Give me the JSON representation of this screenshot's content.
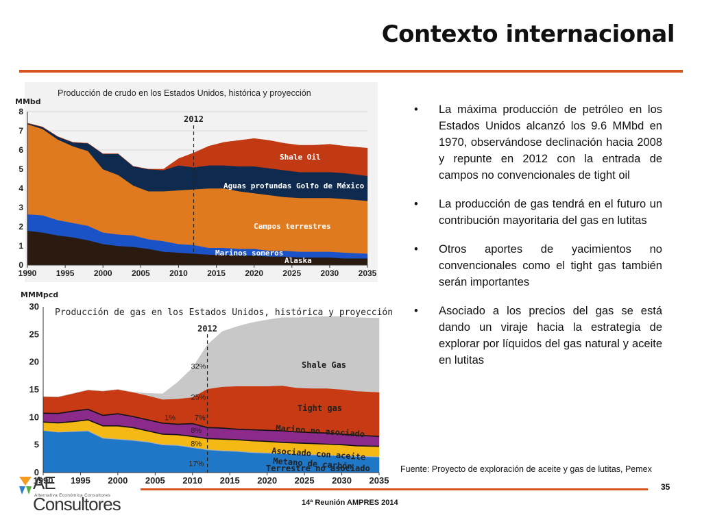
{
  "slide": {
    "title": "Contexto internacional",
    "source": "Fuente: Proyecto de exploración de aceite y gas de lutitas, Pemex",
    "page_number": "35",
    "footer": "14ª Reunión AMPRES 2014",
    "logo": {
      "text_main": "AE Consultores",
      "text_sub": "Alternativa Económica Consultores"
    },
    "accent_color": "#d9531e"
  },
  "bullets": [
    "La máxima producción de petróleo en los Estados Unidos alcanzó los 9.6 MMbd en 1970, observándose declinación hacia 2008 y repunte en 2012 con la entrada de campos no convencionales de tight oil",
    "La producción de gas tendrá en el futuro un contribución mayoritaria del gas en lutitas",
    "Otros aportes de yacimientos no convencionales como el tight gas también serán importantes",
    "Asociado a los precios del gas se está dando un viraje hacia la estrategia de explorar por líquidos del gas natural y aceite en lutitas"
  ],
  "chart_data": [
    {
      "type": "area",
      "stacked": true,
      "title": "Producción de crudo en los Estados Unidos, histórica y proyección",
      "ylabel": "MMbd",
      "ylim": [
        0,
        8
      ],
      "yticks": [
        "0",
        "1",
        "2",
        "3",
        "4",
        "5",
        "6",
        "7",
        "8"
      ],
      "xlim": [
        1990,
        2035
      ],
      "xticks": [
        "1990",
        "1995",
        "2000",
        "2005",
        "2010",
        "2015",
        "2020",
        "2025",
        "2030",
        "2035"
      ],
      "annotation": {
        "label": "2012",
        "x": 2012
      },
      "x": [
        1990,
        1992,
        1994,
        1996,
        1998,
        2000,
        2002,
        2004,
        2006,
        2008,
        2010,
        2012,
        2014,
        2016,
        2018,
        2020,
        2022,
        2024,
        2026,
        2028,
        2030,
        2032,
        2035
      ],
      "grid": true,
      "series": [
        {
          "name": "Marinos someros",
          "color": "#2b1a10",
          "values": [
            1.8,
            1.7,
            1.55,
            1.45,
            1.3,
            1.1,
            1.0,
            0.95,
            0.85,
            0.7,
            0.65,
            0.6,
            0.55,
            0.55,
            0.5,
            0.5,
            0.45,
            0.45,
            0.4,
            0.4,
            0.4,
            0.35,
            0.35
          ]
        },
        {
          "name": "Alaska",
          "color": "#1a53c8",
          "values": [
            0.85,
            0.9,
            0.8,
            0.75,
            0.75,
            0.6,
            0.6,
            0.6,
            0.5,
            0.55,
            0.45,
            0.45,
            0.35,
            0.35,
            0.35,
            0.35,
            0.3,
            0.3,
            0.3,
            0.3,
            0.3,
            0.3,
            0.25
          ]
        },
        {
          "name": "Campos terrestres",
          "color": "#e07a1f",
          "values": [
            4.7,
            4.5,
            4.2,
            4.0,
            3.9,
            3.3,
            3.1,
            2.6,
            2.5,
            2.6,
            2.8,
            2.9,
            3.1,
            3.1,
            3.0,
            2.9,
            2.9,
            2.8,
            2.8,
            2.8,
            2.8,
            2.8,
            2.75
          ]
        },
        {
          "name": "Aguas profundas Golfo de México",
          "color": "#0f2a4f",
          "values": [
            0.05,
            0.1,
            0.15,
            0.2,
            0.4,
            0.8,
            1.1,
            1.0,
            1.15,
            1.1,
            1.3,
            1.15,
            1.2,
            1.2,
            1.3,
            1.4,
            1.4,
            1.4,
            1.35,
            1.35,
            1.35,
            1.35,
            1.3
          ]
        },
        {
          "name": "Shale Oil",
          "color": "#c23a13",
          "values": [
            0,
            0,
            0,
            0,
            0,
            0,
            0,
            0,
            0,
            0.05,
            0.35,
            0.75,
            1.0,
            1.2,
            1.35,
            1.45,
            1.45,
            1.4,
            1.4,
            1.4,
            1.45,
            1.4,
            1.45
          ]
        }
      ]
    },
    {
      "type": "area",
      "stacked": true,
      "title": "Producción de gas en los Estados Unidos, histórica y proyección",
      "ylabel": "MMMpcd",
      "ylim": [
        0,
        30
      ],
      "yticks": [
        "0",
        "5",
        "10",
        "15",
        "20",
        "25",
        "30"
      ],
      "xlim": [
        1990,
        2035
      ],
      "xticks": [
        "1990",
        "1995",
        "2000",
        "2005",
        "2010",
        "2015",
        "2020",
        "2025",
        "2030",
        "2035"
      ],
      "annotation": {
        "label": "2012",
        "x": 2012
      },
      "x": [
        1990,
        1992,
        1994,
        1996,
        1998,
        2000,
        2002,
        2004,
        2006,
        2008,
        2010,
        2012,
        2014,
        2016,
        2018,
        2020,
        2022,
        2024,
        2026,
        2028,
        2030,
        2032,
        2035
      ],
      "grid": false,
      "percent_labels": [
        {
          "text": "17%",
          "x": 2010.5,
          "y": 1.2
        },
        {
          "text": "8%",
          "x": 2010.5,
          "y": 4.8
        },
        {
          "text": "8%",
          "x": 2010.5,
          "y": 7.2
        },
        {
          "text": "7%",
          "x": 2011,
          "y": 9.5
        },
        {
          "text": "1%",
          "x": 2007,
          "y": 9.5
        },
        {
          "text": "25%",
          "x": 2010.8,
          "y": 13.2
        },
        {
          "text": "32%",
          "x": 2010.8,
          "y": 18.8
        }
      ],
      "series": [
        {
          "name": "Terrestre no asociado",
          "color": "#1f77c8",
          "values": [
            7.6,
            7.3,
            7.4,
            7.5,
            6.2,
            6.0,
            5.8,
            5.5,
            5.0,
            4.9,
            4.5,
            4.1,
            3.9,
            3.8,
            3.6,
            3.5,
            3.4,
            3.3,
            3.2,
            3.1,
            3.0,
            2.9,
            2.8
          ]
        },
        {
          "name": "Metano de carbón",
          "color": "#b0b0b0",
          "values": [
            0.05,
            0.1,
            0.12,
            0.15,
            0.15,
            0.15,
            0.15,
            0.15,
            0.15,
            0.15,
            0.15,
            0.15,
            0.15,
            0.15,
            0.15,
            0.15,
            0.15,
            0.15,
            0.15,
            0.15,
            0.15,
            0.15,
            0.15
          ]
        },
        {
          "name": "Asociado con aceite",
          "color": "#f5b915",
          "values": [
            1.5,
            1.6,
            1.7,
            1.9,
            2.1,
            2.3,
            2.2,
            1.9,
            1.8,
            1.8,
            1.9,
            1.9,
            2.0,
            2.0,
            2.0,
            2.0,
            1.9,
            1.9,
            1.9,
            1.9,
            1.9,
            1.8,
            1.8
          ]
        },
        {
          "name": "Marino no asociado",
          "color": "#8b2a8b",
          "values": [
            1.6,
            1.7,
            1.9,
            1.9,
            1.9,
            2.2,
            2.0,
            2.0,
            2.0,
            1.9,
            2.3,
            2.0,
            2.0,
            1.9,
            2.0,
            2.0,
            2.1,
            2.0,
            2.0,
            2.0,
            1.9,
            1.9,
            1.8
          ]
        },
        {
          "name": "Tight gas",
          "color": "#c73a14",
          "values": [
            3.0,
            3.0,
            3.2,
            3.5,
            4.4,
            4.4,
            4.4,
            4.4,
            4.3,
            4.6,
            4.8,
            7.0,
            7.5,
            7.8,
            7.9,
            8.0,
            8.2,
            8.0,
            8.0,
            8.1,
            8.1,
            8.0,
            8.0
          ]
        },
        {
          "name": "Shale Gas",
          "color": "#c8c8c8",
          "values": [
            0,
            0,
            0,
            0,
            0,
            0,
            0,
            0.4,
            1.0,
            3.0,
            5.3,
            8.0,
            10.0,
            10.8,
            11.5,
            12.0,
            12.3,
            12.7,
            12.9,
            13.0,
            13.2,
            13.3,
            13.4
          ]
        }
      ]
    }
  ]
}
